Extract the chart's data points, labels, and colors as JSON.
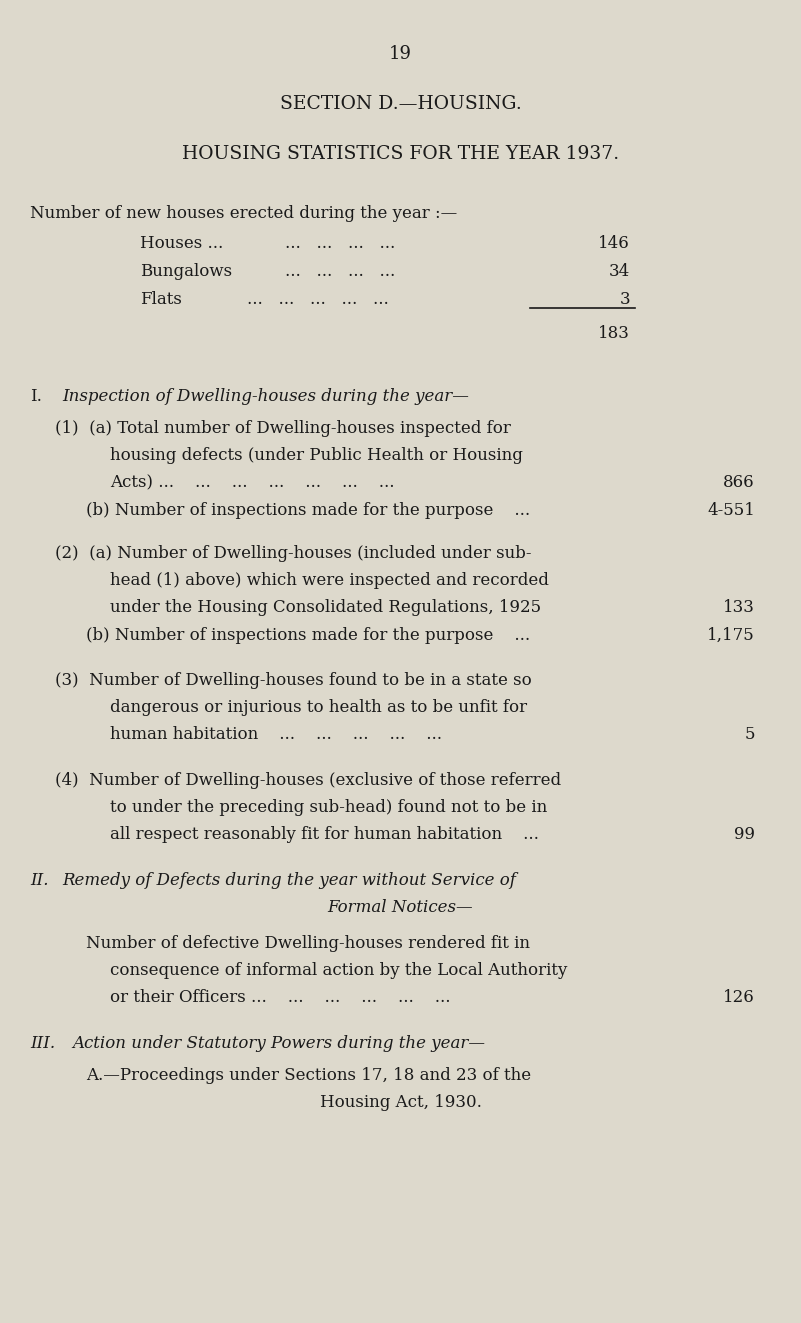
{
  "bg_color": "#ddd9cc",
  "text_color": "#1a1a1a",
  "page_number": "19",
  "section_title": "SECTION D.—HOUSING.",
  "subtitle": "HOUSING STATISTICS FOR THE YEAR 1937.",
  "intro": "Number of new houses erected during the year :—",
  "houses_val": "146",
  "bungalows_val": "34",
  "flats_val": "3",
  "total_val": "183",
  "s1a_val": "866",
  "s1b_val": "4-551",
  "s2a_val": "133",
  "s2b_val": "1,175",
  "s3_val": "5",
  "s4_val": "99",
  "sII_val": "126",
  "fig_width": 8.01,
  "fig_height": 13.23,
  "dpi": 100
}
